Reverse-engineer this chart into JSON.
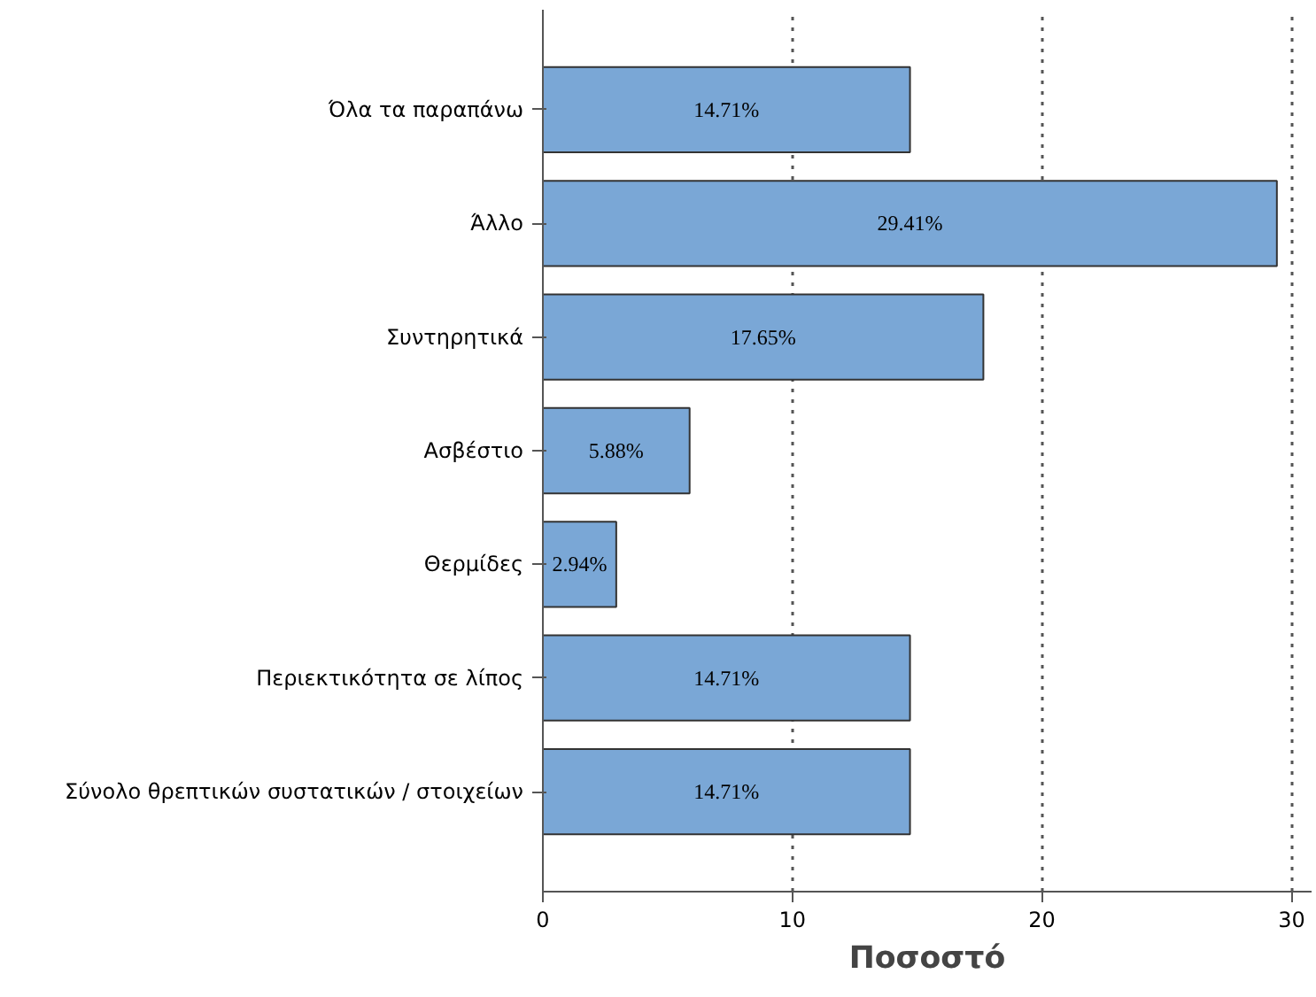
{
  "chart_data": {
    "type": "bar",
    "orientation": "horizontal",
    "xlabel": "Ποσοστό",
    "categories": [
      "Όλα τα παραπάνω",
      "Άλλο",
      "Συντηρητικά",
      "Ασβέστιο",
      "Θερμίδες",
      "Περιεκτικότητα σε λίπος",
      "Σύνολο θρεπτικών συστατικών / στοιχείων"
    ],
    "values": [
      14.71,
      29.41,
      17.65,
      5.88,
      2.94,
      14.71,
      14.71
    ],
    "value_labels": [
      "14.71%",
      "29.41%",
      "17.65%",
      "5.88%",
      "2.94%",
      "14.71%",
      "14.71%"
    ],
    "color": "#7aa7d6",
    "xlim": [
      0,
      30.8
    ],
    "xticks": [
      0,
      10,
      20,
      30
    ],
    "grid": "x",
    "line_style": "dotted"
  }
}
